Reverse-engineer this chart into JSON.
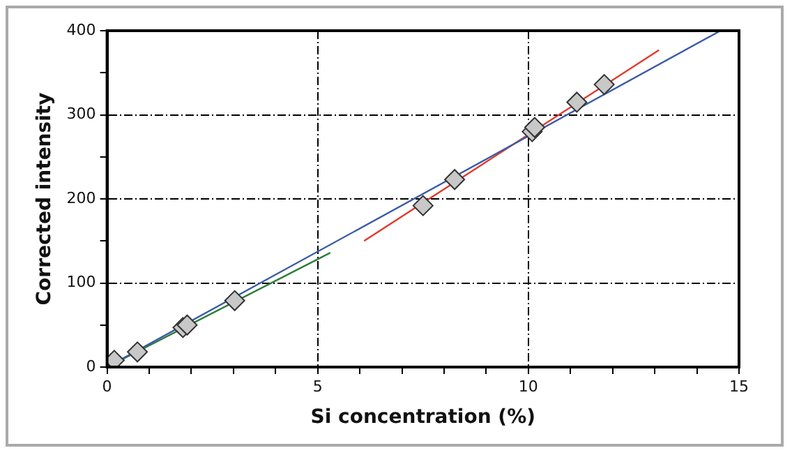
{
  "chart_data": {
    "type": "scatter",
    "xlabel": "Si concentration (%)",
    "ylabel": "Corrected intensity",
    "xlim": [
      0,
      15
    ],
    "ylim": [
      0,
      400
    ],
    "xticks": [
      0,
      {
        "value": 1,
        "label": null
      },
      {
        "value": 2,
        "label": null
      },
      {
        "value": 3,
        "label": null
      },
      {
        "value": 4,
        "label": null
      },
      5,
      {
        "value": 6,
        "label": null
      },
      {
        "value": 7,
        "label": null
      },
      {
        "value": 8,
        "label": null
      },
      {
        "value": 9,
        "label": null
      },
      10,
      {
        "value": 11,
        "label": null
      },
      {
        "value": 12,
        "label": null
      },
      {
        "value": 13,
        "label": null
      },
      {
        "value": 14,
        "label": null
      },
      15
    ],
    "yticks": [
      0,
      {
        "value": 50,
        "label": null
      },
      100,
      {
        "value": 150,
        "label": null
      },
      200,
      {
        "value": 250,
        "label": null
      },
      300,
      {
        "value": 350,
        "label": null
      },
      400
    ],
    "grid": true,
    "legend": false,
    "series": [
      {
        "type": "line",
        "color": "#3b5ba5",
        "marker": "none",
        "x": [
          0,
          14.56
        ],
        "values": [
          0,
          400
        ]
      },
      {
        "type": "line",
        "color": "#2e7d3a",
        "marker": "none",
        "x": [
          0,
          5.3
        ],
        "values": [
          0,
          136
        ]
      },
      {
        "type": "line",
        "color": "#e03a2a",
        "marker": "none",
        "x": [
          6.1,
          13.1
        ],
        "values": [
          150,
          377
        ]
      },
      {
        "type": "scatter",
        "color": "#c8c8c8",
        "marker": "diamond",
        "x": [
          0.17,
          0.72,
          1.8,
          1.9,
          3.03,
          7.5,
          8.25,
          10.09,
          10.15,
          11.15,
          11.8
        ],
        "values": [
          8,
          18,
          47,
          50,
          79,
          192,
          223,
          280,
          285,
          315,
          336
        ]
      }
    ]
  }
}
